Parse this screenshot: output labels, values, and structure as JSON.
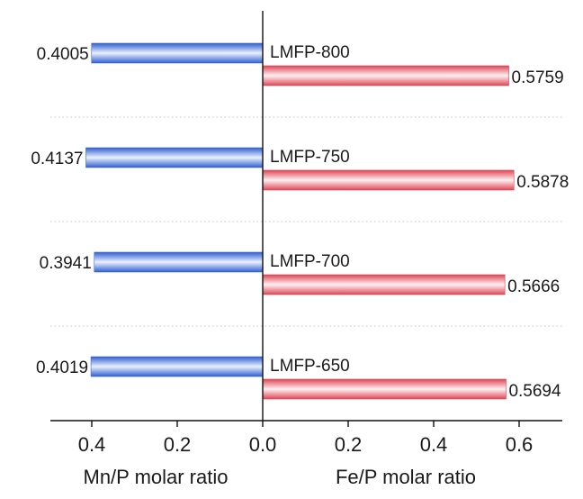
{
  "chart_data": {
    "type": "bar",
    "orientation": "horizontal-diverging",
    "categories": [
      "LMFP-800",
      "LMFP-750",
      "LMFP-700",
      "LMFP-650"
    ],
    "series": [
      {
        "side": "left",
        "values": [
          0.4005,
          0.4137,
          0.3941,
          0.4019
        ],
        "labels": [
          "0.4005",
          "0.4137",
          "0.3941",
          "0.4019"
        ],
        "color": "#4f7fe6"
      },
      {
        "side": "right",
        "values": [
          0.5759,
          0.5878,
          0.5666,
          0.5694
        ],
        "labels": [
          "0.5759",
          "0.5878",
          "0.5666",
          "0.5694"
        ],
        "color": "#ee5f6e"
      }
    ],
    "xlabel_left": "Mn/P molar ratio",
    "xlabel_right": "Fe/P molar ratio",
    "xlim_left": [
      0,
      0.5
    ],
    "xlim_right": [
      0,
      0.65
    ],
    "ticks": [
      {
        "value": -0.4,
        "label": "0.4"
      },
      {
        "value": -0.2,
        "label": "0.2"
      },
      {
        "value": 0.0,
        "label": "0.0"
      },
      {
        "value": 0.2,
        "label": "0.2"
      },
      {
        "value": 0.4,
        "label": "0.4"
      },
      {
        "value": 0.6,
        "label": "0.6"
      }
    ],
    "grid": "dotted horizontal separators between groups",
    "legend": "none"
  }
}
